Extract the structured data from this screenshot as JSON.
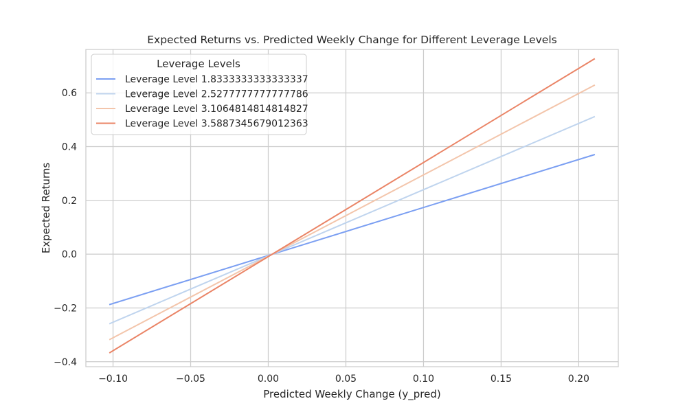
{
  "chart_data": {
    "type": "line",
    "title": "Expected Returns vs. Predicted Weekly Change for Different Leverage Levels",
    "xlabel": "Predicted Weekly Change (y_pred)",
    "ylabel": "Expected Returns",
    "xlim": [
      -0.1175,
      0.2255
    ],
    "ylim": [
      -0.4185,
      0.7615
    ],
    "x_ticks": [
      -0.1,
      -0.05,
      0.0,
      0.05,
      0.1,
      0.15,
      0.2
    ],
    "x_tick_labels": [
      "−0.10",
      "−0.05",
      "0.00",
      "0.05",
      "0.10",
      "0.15",
      "0.20"
    ],
    "y_ticks": [
      -0.4,
      -0.2,
      0.0,
      0.2,
      0.4,
      0.6
    ],
    "y_tick_labels": [
      "−0.4",
      "−0.2",
      "0.0",
      "0.2",
      "0.4",
      "0.6"
    ],
    "grid": true,
    "legend": {
      "title": "Leverage Levels",
      "placement": "top-left"
    },
    "series": [
      {
        "name": "Leverage Level 1.8333333333333337",
        "color": "#7b9ff2",
        "x": [
          -0.102,
          0.21
        ],
        "y": [
          -0.187,
          0.37
        ]
      },
      {
        "name": "Leverage Level 2.5277777777777786",
        "color": "#bfd4ee",
        "x": [
          -0.102,
          0.21
        ],
        "y": [
          -0.258,
          0.511
        ]
      },
      {
        "name": "Leverage Level 3.1064814814814827",
        "color": "#f3c5ab",
        "x": [
          -0.102,
          0.21
        ],
        "y": [
          -0.317,
          0.628
        ]
      },
      {
        "name": "Leverage Level 3.5887345679012363",
        "color": "#ea8466",
        "x": [
          -0.102,
          0.21
        ],
        "y": [
          -0.366,
          0.726
        ]
      }
    ]
  }
}
